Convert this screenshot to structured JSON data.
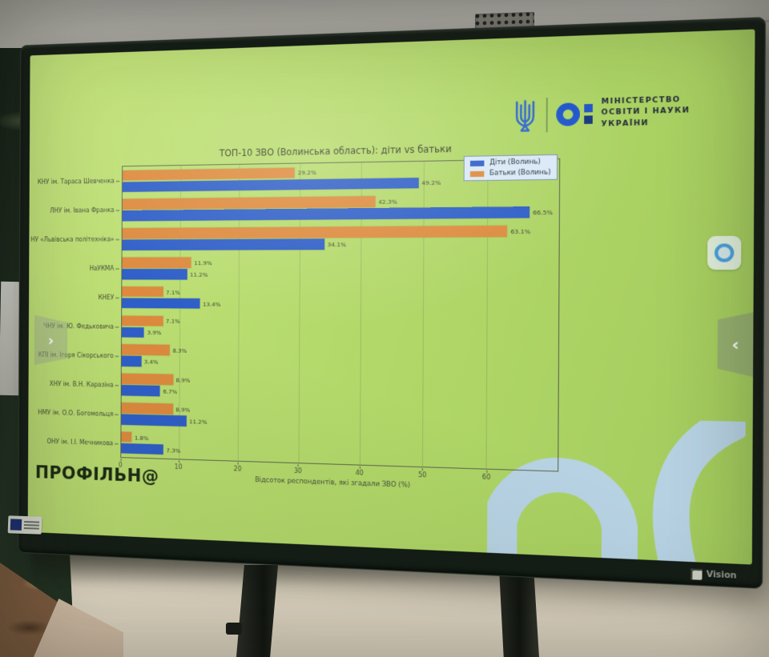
{
  "device": {
    "brand": "Vision"
  },
  "screen": {
    "ministry_logo": {
      "line1": "МІНІСТЕРСТВО",
      "line2": "ОСВІТИ І НАУКИ",
      "line3": "УКРАЇНИ"
    },
    "footer_brand": "ПРОФІЛЬН@"
  },
  "chart_data": {
    "type": "bar",
    "orientation": "horizontal",
    "title": "ТОП-10 ЗВО (Волинська область): діти vs батьки",
    "xlabel": "Відсоток респондентів, які згадали ЗВО (%)",
    "xlim": [
      0,
      71
    ],
    "xticks": [
      0,
      10,
      20,
      30,
      40,
      50,
      60
    ],
    "grid": true,
    "legend_position": "upper right",
    "value_suffix": "%",
    "categories": [
      "КНУ ім. Тараса Шевченка",
      "ЛНУ ім. Івана Франка",
      "НУ «Львівська політехніка»",
      "НаУКМА",
      "КНЕУ",
      "ЧНУ ім. Ю. Федьковича",
      "КПІ ім. Ігоря Сікорського",
      "ХНУ ім. В.Н. Каразіна",
      "НМУ ім. О.О. Богомольця",
      "ОНУ ім. І.І. Мечникова"
    ],
    "series": [
      {
        "name": "Діти (Волинь)",
        "color": "#2e5ec8",
        "values": [
          49.2,
          66.5,
          34.1,
          11.2,
          13.4,
          3.9,
          3.4,
          6.7,
          11.2,
          7.3
        ]
      },
      {
        "name": "Батьки (Волинь)",
        "color": "#dd8a3e",
        "values": [
          29.2,
          42.3,
          63.1,
          11.9,
          7.1,
          7.1,
          8.3,
          8.9,
          8.9,
          1.8
        ]
      }
    ]
  },
  "colors": {
    "screen_background": "#b4d96b",
    "bar_children": "#2e5ec8",
    "bar_parents": "#dd8a3e",
    "legend_background": "#d9e9f6",
    "ministry_blue": "#1d54cc",
    "decor_shape": "#b7d2e3"
  }
}
